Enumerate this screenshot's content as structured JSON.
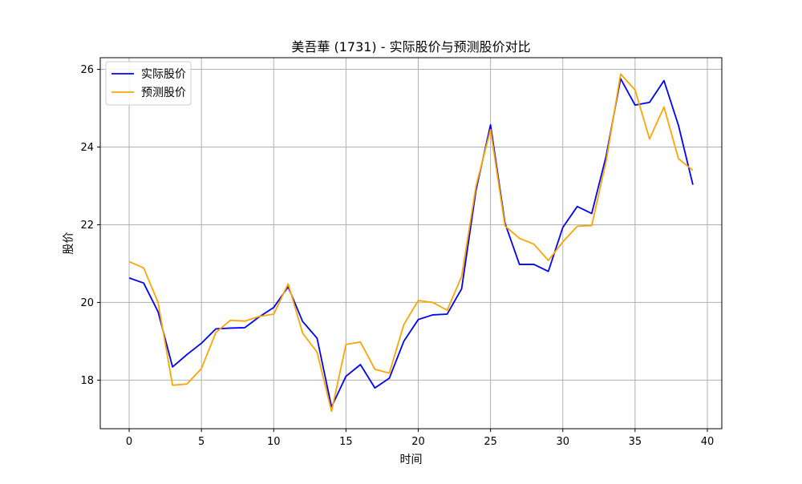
{
  "chart_data": {
    "type": "line",
    "title": "美吾華 (1731) - 实际股价与预测股价对比",
    "xlabel": "时间",
    "ylabel": "股价",
    "xlim": [
      -2,
      41
    ],
    "ylim": [
      16.75,
      26.3
    ],
    "x_ticks": [
      0,
      5,
      10,
      15,
      20,
      25,
      30,
      35,
      40
    ],
    "y_ticks": [
      18,
      20,
      22,
      24,
      26
    ],
    "grid": true,
    "legend_position": "top-left",
    "x": [
      0,
      1,
      2,
      3,
      4,
      5,
      6,
      7,
      8,
      9,
      10,
      11,
      12,
      13,
      14,
      15,
      16,
      17,
      18,
      19,
      20,
      21,
      22,
      23,
      24,
      25,
      26,
      27,
      28,
      29,
      30,
      31,
      32,
      33,
      34,
      35,
      36,
      37,
      38,
      39
    ],
    "series": [
      {
        "name": "实际股价",
        "color": "#0000ff",
        "values": [
          20.63,
          20.5,
          19.76,
          18.34,
          18.66,
          18.95,
          19.32,
          19.34,
          19.35,
          19.63,
          19.87,
          20.4,
          19.51,
          19.08,
          17.31,
          18.1,
          18.4,
          17.8,
          18.05,
          19.0,
          19.56,
          19.68,
          19.7,
          20.35,
          22.9,
          24.57,
          22.04,
          20.98,
          20.98,
          20.8,
          21.93,
          22.47,
          22.29,
          23.77,
          25.76,
          25.08,
          25.15,
          25.71,
          24.56,
          23.03
        ]
      },
      {
        "name": "预测股价",
        "color": "#ffa500",
        "values": [
          21.05,
          20.89,
          20.0,
          17.87,
          17.9,
          18.3,
          19.23,
          19.54,
          19.52,
          19.64,
          19.7,
          20.48,
          19.21,
          18.72,
          17.2,
          18.92,
          18.98,
          18.28,
          18.18,
          19.43,
          20.05,
          20.0,
          19.8,
          20.67,
          23.0,
          24.45,
          21.97,
          21.65,
          21.5,
          21.08,
          21.56,
          21.96,
          21.98,
          23.64,
          25.88,
          25.47,
          24.21,
          25.03,
          23.7,
          23.4
        ]
      }
    ]
  }
}
